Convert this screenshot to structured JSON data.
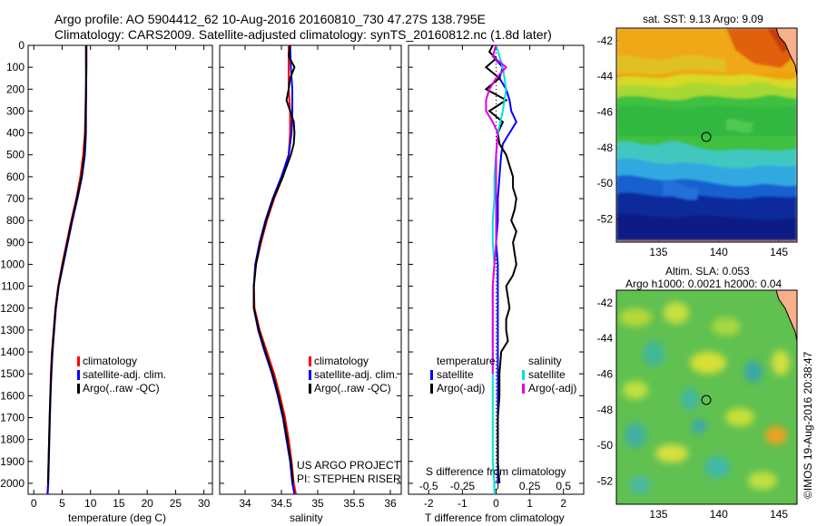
{
  "header": {
    "line1": "Argo profile: AO 5904412_62 10-Aug-2016 20160810_730 47.27S 138.795E",
    "line2": "Climatology: CARS2009. Satellite-adjusted climatology: synTS_20160812.nc (1.8d later)"
  },
  "side_stamp": "©IMOS 19-Aug-2016 20:38:47",
  "colors": {
    "climatology": "#ff0000",
    "satellite": "#0000ff",
    "argo": "#000000",
    "salinity_satellite": "#00e0e0",
    "salinity_argo": "#e000e0"
  },
  "chart_data": [
    {
      "id": "temperature",
      "type": "line",
      "xlabel": "temperature (deg C)",
      "ylabel": "",
      "xlim": [
        -1,
        31.5
      ],
      "ylim": [
        2050,
        0
      ],
      "xticks": [
        0,
        5,
        10,
        15,
        20,
        25,
        30
      ],
      "yticks": [
        0,
        100,
        200,
        300,
        400,
        500,
        600,
        700,
        800,
        900,
        1000,
        1100,
        1200,
        1300,
        1400,
        1500,
        1600,
        1700,
        1800,
        1900,
        2000
      ],
      "legend": [
        "climatology",
        "satellite-adj. clim.",
        "Argo(..raw -QC)"
      ],
      "series": [
        {
          "name": "climatology",
          "color": "#ff0000",
          "depth": [
            0,
            100,
            200,
            300,
            400,
            500,
            600,
            700,
            800,
            900,
            1000,
            1100,
            1200,
            1300,
            1400,
            1500,
            1600,
            1700,
            1800,
            1900,
            2000,
            2050
          ],
          "values": [
            9.3,
            9.3,
            9.2,
            9.1,
            9.0,
            8.7,
            8.2,
            7.5,
            6.6,
            5.8,
            5.0,
            4.3,
            3.8,
            3.5,
            3.2,
            3.0,
            2.9,
            2.8,
            2.7,
            2.6,
            2.5,
            2.4
          ]
        },
        {
          "name": "satellite-adj. clim.",
          "color": "#0000ff",
          "depth": [
            0,
            100,
            200,
            300,
            400,
            500,
            600,
            700,
            800,
            900,
            1000,
            1100,
            1200,
            1300,
            1400,
            1500,
            1600,
            1700,
            1800,
            1900,
            2000,
            2050
          ],
          "values": [
            9.2,
            9.2,
            9.25,
            9.2,
            9.2,
            9.0,
            8.5,
            7.7,
            6.8,
            6.0,
            5.2,
            4.4,
            3.9,
            3.6,
            3.3,
            3.1,
            2.95,
            2.85,
            2.75,
            2.65,
            2.55,
            2.45
          ]
        },
        {
          "name": "Argo(..raw -QC)",
          "color": "#000000",
          "depth": [
            0,
            100,
            200,
            300,
            400,
            500,
            600,
            700,
            800,
            900,
            1000,
            1100,
            1200,
            1300,
            1400,
            1500,
            1600,
            1700,
            1800,
            1900,
            2000
          ],
          "values": [
            9.25,
            9.25,
            9.2,
            9.15,
            9.1,
            8.9,
            8.4,
            7.6,
            6.7,
            5.9,
            5.1,
            4.35,
            3.85,
            3.55,
            3.25,
            3.05,
            2.9,
            2.8,
            2.7,
            2.6,
            2.5
          ]
        }
      ]
    },
    {
      "id": "salinity",
      "type": "line",
      "xlabel": "salinity",
      "ylabel": "",
      "xlim": [
        33.65,
        36.15
      ],
      "ylim": [
        2050,
        0
      ],
      "xticks": [
        34,
        34.5,
        35,
        35.5,
        36
      ],
      "legend": [
        "climatology",
        "satellite-adj. clim.",
        "Argo(..raw -QC)"
      ],
      "annotation": [
        "US ARGO PROJECT",
        "PI: STEPHEN RISER"
      ],
      "series": [
        {
          "name": "climatology",
          "color": "#ff0000",
          "depth": [
            0,
            100,
            200,
            300,
            400,
            500,
            600,
            700,
            800,
            900,
            1000,
            1100,
            1200,
            1300,
            1400,
            1500,
            1600,
            1700,
            1800,
            1900,
            2000,
            2050
          ],
          "values": [
            34.6,
            34.6,
            34.6,
            34.62,
            34.62,
            34.6,
            34.52,
            34.4,
            34.3,
            34.22,
            34.15,
            34.12,
            34.13,
            34.2,
            34.3,
            34.4,
            34.48,
            34.55,
            34.6,
            34.64,
            34.67,
            34.7
          ]
        },
        {
          "name": "satellite-adj. clim.",
          "color": "#0000ff",
          "depth": [
            0,
            100,
            200,
            300,
            400,
            500,
            600,
            700,
            800,
            900,
            1000,
            1100,
            1200,
            1300,
            1400,
            1500,
            1600,
            1700,
            1800,
            1900,
            2000,
            2050
          ],
          "values": [
            34.62,
            34.63,
            34.65,
            34.65,
            34.64,
            34.6,
            34.5,
            34.38,
            34.28,
            34.2,
            34.14,
            34.12,
            34.12,
            34.18,
            34.27,
            34.37,
            34.45,
            34.52,
            34.57,
            34.62,
            34.65,
            34.68
          ]
        },
        {
          "name": "Argo(..raw -QC)",
          "color": "#000000",
          "depth": [
            0,
            50,
            100,
            150,
            200,
            250,
            300,
            350,
            400,
            450,
            500,
            600,
            700,
            800,
            900,
            1000,
            1100,
            1200,
            1300,
            1400,
            1500,
            1600,
            1700,
            1800,
            1900,
            2000
          ],
          "values": [
            34.62,
            34.6,
            34.68,
            34.62,
            34.6,
            34.57,
            34.62,
            34.67,
            34.68,
            34.67,
            34.63,
            34.52,
            34.39,
            34.29,
            34.21,
            34.15,
            34.12,
            34.12,
            34.19,
            34.28,
            34.38,
            34.46,
            34.53,
            34.58,
            34.63,
            34.66
          ]
        }
      ]
    },
    {
      "id": "difference",
      "type": "line",
      "xlabel": "T difference from climatology",
      "x2label": "S difference from climatology",
      "ylabel": "",
      "xlim": [
        -2.6,
        2.6
      ],
      "ylim": [
        2050,
        0
      ],
      "xticks": [
        -2,
        -1,
        0,
        1,
        2
      ],
      "x2ticks": [
        -0.5,
        -0.25,
        0,
        0.25,
        0.5
      ],
      "legend_temperature": {
        "header": "temperature",
        "items": [
          "satellite",
          "Argo(-adj)"
        ]
      },
      "legend_salinity": {
        "header": "salinity",
        "items": [
          "satellite",
          "Argo(-adj)"
        ]
      },
      "series": [
        {
          "name": "temperature satellite",
          "color": "#0000ff",
          "depth": [
            0,
            50,
            100,
            150,
            200,
            250,
            300,
            350,
            400,
            450,
            500,
            600,
            700,
            800,
            900,
            1000,
            1200,
            1400,
            1600,
            1800,
            2000
          ],
          "values": [
            0.0,
            -0.1,
            0.2,
            0.1,
            0.3,
            0.4,
            0.45,
            0.6,
            0.4,
            0.2,
            0.15,
            0.1,
            0.05,
            0.05,
            0.0,
            0.05,
            0.05,
            0.05,
            0.05,
            0.05,
            0.05
          ]
        },
        {
          "name": "temperature Argo(-adj)",
          "color": "#000000",
          "depth": [
            0,
            30,
            60,
            100,
            150,
            200,
            250,
            300,
            350,
            400,
            450,
            500,
            550,
            600,
            650,
            700,
            750,
            800,
            850,
            900,
            950,
            1000,
            1050,
            1100,
            1150,
            1200,
            1250,
            1300,
            1350,
            1400,
            1500,
            1600,
            1700,
            1800,
            1900,
            2000
          ],
          "values": [
            -0.1,
            -0.2,
            0.0,
            -0.3,
            0.1,
            -0.3,
            0.3,
            -0.2,
            0.2,
            0.05,
            0.1,
            0.3,
            0.4,
            0.5,
            0.5,
            0.6,
            0.55,
            0.45,
            0.6,
            0.5,
            0.55,
            0.6,
            0.5,
            0.3,
            0.35,
            0.4,
            0.3,
            0.3,
            0.35,
            0.15,
            0.1,
            0.1,
            0.05,
            0.05,
            0.05,
            0.1
          ]
        },
        {
          "name": "salinity satellite",
          "color": "#00e0e0",
          "depth": [
            0,
            100,
            200,
            300,
            400,
            500,
            600,
            700,
            800,
            900,
            1000,
            1100,
            1200,
            1300,
            1400,
            1500,
            1600,
            1700,
            1800,
            1900,
            2000,
            2050
          ],
          "values": [
            0.0,
            0.2,
            0.3,
            0.2,
            0.05,
            0.0,
            -0.05,
            -0.05,
            -0.1,
            -0.1,
            -0.05,
            -0.1,
            -0.1,
            -0.1,
            -0.1,
            -0.1,
            -0.1,
            -0.1,
            -0.1,
            -0.1,
            -0.05,
            -0.05
          ]
        },
        {
          "name": "salinity Argo(-adj)",
          "color": "#e000e0",
          "depth": [
            0,
            50,
            100,
            150,
            200,
            250,
            300,
            350,
            400,
            500,
            700,
            900,
            1100,
            1300,
            1500
          ],
          "values": [
            0.0,
            -0.1,
            0.3,
            0.0,
            -0.2,
            -0.3,
            -0.3,
            -0.1,
            0.05,
            0.0,
            0.0,
            0.0,
            -0.1,
            -0.1,
            -0.1
          ]
        }
      ]
    },
    {
      "id": "sst_map",
      "type": "heatmap",
      "title": "sat. SST: 9.13 Argo: 9.09",
      "xticks": [
        135,
        140,
        145
      ],
      "yticks": [
        -42,
        -44,
        -46,
        -48,
        -50,
        -52
      ],
      "xlim": [
        131.5,
        146.5
      ],
      "ylim": [
        -53.3,
        -41.3
      ],
      "marker": {
        "lon": 138.795,
        "lat": -47.27
      }
    },
    {
      "id": "sla_map",
      "type": "heatmap",
      "title": "Altim. SLA: 0.053",
      "subtitle": "Argo h1000: 0.0021 h2000: 0.04",
      "xticks": [
        135,
        140,
        145
      ],
      "yticks": [
        -42,
        -44,
        -46,
        -48,
        -50,
        -52
      ],
      "xlim": [
        131.5,
        146.5
      ],
      "ylim": [
        -53.3,
        -41.3
      ],
      "marker": {
        "lon": 138.795,
        "lat": -47.27
      }
    }
  ]
}
